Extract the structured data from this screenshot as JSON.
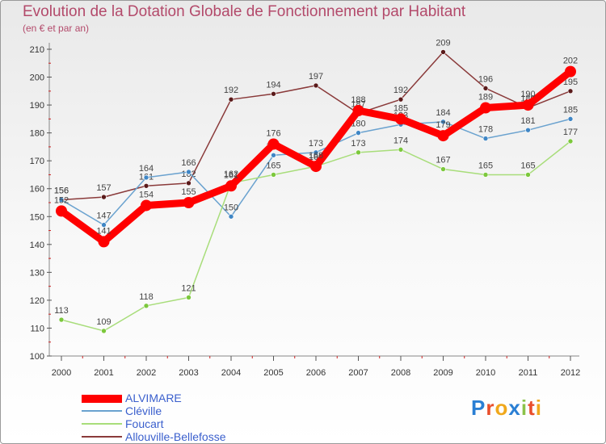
{
  "header": {
    "title": "Evolution de la Dotation Globale de Fonctionnement par Habitant",
    "subtitle": "(en € et par an)"
  },
  "logo": {
    "text": "Proxiti"
  },
  "chart_data": {
    "type": "line",
    "title": "Evolution de la Dotation Globale de Fonctionnement par Habitant",
    "subtitle": "(en € et par an)",
    "xlabel": "",
    "ylabel": "",
    "x": [
      "2000",
      "2001",
      "2002",
      "2003",
      "2004",
      "2005",
      "2006",
      "2007",
      "2008",
      "2009",
      "2010",
      "2011",
      "2012"
    ],
    "ylim": [
      100,
      210
    ],
    "yticks": [
      100,
      110,
      120,
      130,
      140,
      150,
      160,
      170,
      180,
      190,
      200,
      210
    ],
    "grid": false,
    "legend_position": "bottom-left",
    "series": [
      {
        "name": "ALVIMARE",
        "color": "#ff0000",
        "point_color": "#ff0000",
        "emphasis": true,
        "values": [
          152,
          141,
          154,
          155,
          161,
          176,
          168,
          188,
          185,
          179,
          189,
          190,
          202
        ]
      },
      {
        "name": "Cléville",
        "color": "#6aa2cf",
        "point_color": "#3f86c5",
        "emphasis": false,
        "values": [
          156,
          147,
          164,
          166,
          150,
          172,
          173,
          180,
          183,
          184,
          178,
          181,
          185
        ]
      },
      {
        "name": "Foucart",
        "color": "#a8dd7a",
        "point_color": "#7cc83c",
        "emphasis": false,
        "values": [
          113,
          109,
          118,
          121,
          162,
          165,
          168,
          173,
          174,
          167,
          165,
          165,
          177
        ]
      },
      {
        "name": "Allouville-Bellefosse",
        "color": "#8a3a3a",
        "point_color": "#5a1a1a",
        "emphasis": false,
        "values": [
          156,
          157,
          161,
          162,
          192,
          194,
          197,
          187,
          192,
          209,
          196,
          189,
          195
        ]
      }
    ]
  }
}
